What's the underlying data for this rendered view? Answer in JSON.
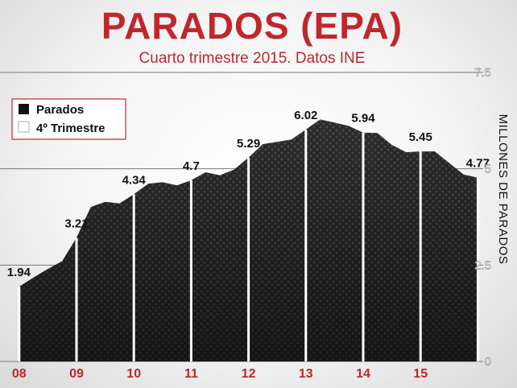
{
  "chart_data": {
    "type": "area",
    "title": "PARADOS (EPA)",
    "subtitle": "Cuarto trimestre 2015. Datos INE",
    "ylabel": "MILLONES DE PARADOS",
    "ylim": [
      0,
      7.5
    ],
    "yticks": [
      "0",
      "2.5",
      "5",
      "7.5"
    ],
    "xticks": [
      "08",
      "09",
      "10",
      "11",
      "12",
      "13",
      "14",
      "15"
    ],
    "legend": {
      "placement": "top-left",
      "entries": [
        {
          "name": "Parados",
          "swatch": "black"
        },
        {
          "name": "4º Trimestre",
          "swatch": "white"
        }
      ]
    },
    "series": [
      {
        "name": "Parados",
        "x": [
          2007.75,
          2008.0,
          2008.25,
          2008.5,
          2008.75,
          2009.0,
          2009.25,
          2009.5,
          2009.75,
          2010.0,
          2010.25,
          2010.5,
          2010.75,
          2011.0,
          2011.25,
          2011.5,
          2011.75,
          2012.0,
          2012.25,
          2012.5,
          2012.75,
          2013.0,
          2013.25,
          2013.5,
          2013.75,
          2014.0,
          2014.25,
          2014.5,
          2014.75,
          2015.0,
          2015.25,
          2015.5,
          2015.75
        ],
        "values": [
          1.94,
          2.18,
          2.4,
          2.6,
          3.21,
          4.01,
          4.14,
          4.1,
          4.34,
          4.61,
          4.65,
          4.57,
          4.7,
          4.91,
          4.83,
          4.98,
          5.29,
          5.64,
          5.7,
          5.76,
          6.02,
          6.28,
          6.2,
          6.11,
          5.94,
          5.93,
          5.62,
          5.43,
          5.45,
          5.45,
          5.15,
          4.85,
          4.77
        ]
      }
    ],
    "q4_markers": [
      {
        "x": 2007.75,
        "value": 1.94,
        "label": "1.94"
      },
      {
        "x": 2008.75,
        "value": 3.21,
        "label": "3.21"
      },
      {
        "x": 2009.75,
        "value": 4.34,
        "label": "4.34"
      },
      {
        "x": 2010.75,
        "value": 4.7,
        "label": "4.7"
      },
      {
        "x": 2011.75,
        "value": 5.29,
        "label": "5.29"
      },
      {
        "x": 2012.75,
        "value": 6.02,
        "label": "6.02"
      },
      {
        "x": 2013.75,
        "value": 5.94,
        "label": "5.94"
      },
      {
        "x": 2014.75,
        "value": 5.45,
        "label": "5.45"
      },
      {
        "x": 2015.75,
        "value": 4.77,
        "label": "4.77"
      }
    ],
    "grid": true,
    "colors": {
      "title": "#c0272d",
      "subtitle": "#c0272d",
      "xtick": "#c0272d",
      "area": "#2b2b2b",
      "marker": "#ffffff",
      "ytick": "#ffffff",
      "gridline": "#777777"
    }
  }
}
